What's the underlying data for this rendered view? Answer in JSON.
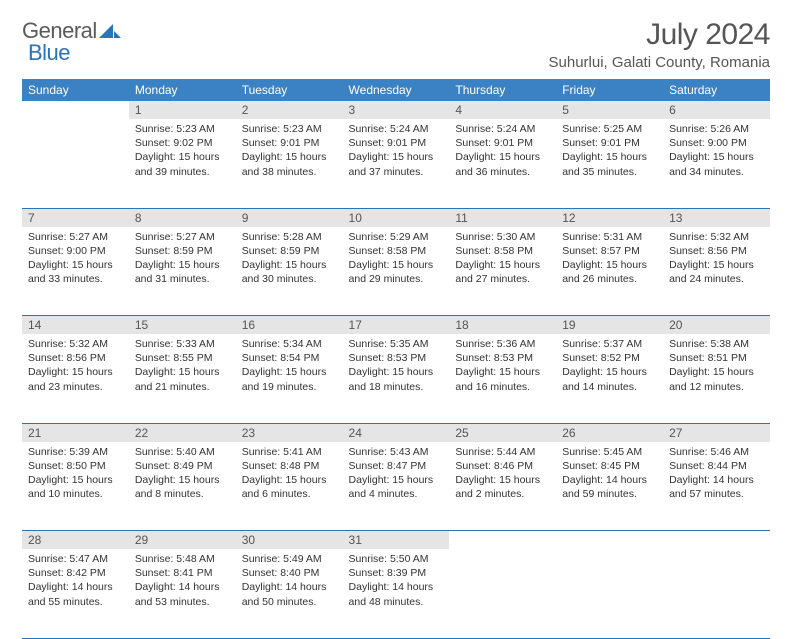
{
  "logo": {
    "word1": "General",
    "word2": "Blue"
  },
  "title": "July 2024",
  "location": "Suhurlui, Galati County, Romania",
  "colors": {
    "header_bg": "#3b82c4",
    "header_text": "#ffffff",
    "daynum_bg": "#e5e5e5",
    "border": "#2c74b8",
    "logo_gray": "#5a5a5a",
    "logo_blue": "#2c74b8"
  },
  "weekdays": [
    "Sunday",
    "Monday",
    "Tuesday",
    "Wednesday",
    "Thursday",
    "Friday",
    "Saturday"
  ],
  "weeks": [
    [
      null,
      {
        "n": "1",
        "sr": "Sunrise: 5:23 AM",
        "ss": "Sunset: 9:02 PM",
        "dl": "Daylight: 15 hours and 39 minutes."
      },
      {
        "n": "2",
        "sr": "Sunrise: 5:23 AM",
        "ss": "Sunset: 9:01 PM",
        "dl": "Daylight: 15 hours and 38 minutes."
      },
      {
        "n": "3",
        "sr": "Sunrise: 5:24 AM",
        "ss": "Sunset: 9:01 PM",
        "dl": "Daylight: 15 hours and 37 minutes."
      },
      {
        "n": "4",
        "sr": "Sunrise: 5:24 AM",
        "ss": "Sunset: 9:01 PM",
        "dl": "Daylight: 15 hours and 36 minutes."
      },
      {
        "n": "5",
        "sr": "Sunrise: 5:25 AM",
        "ss": "Sunset: 9:01 PM",
        "dl": "Daylight: 15 hours and 35 minutes."
      },
      {
        "n": "6",
        "sr": "Sunrise: 5:26 AM",
        "ss": "Sunset: 9:00 PM",
        "dl": "Daylight: 15 hours and 34 minutes."
      }
    ],
    [
      {
        "n": "7",
        "sr": "Sunrise: 5:27 AM",
        "ss": "Sunset: 9:00 PM",
        "dl": "Daylight: 15 hours and 33 minutes."
      },
      {
        "n": "8",
        "sr": "Sunrise: 5:27 AM",
        "ss": "Sunset: 8:59 PM",
        "dl": "Daylight: 15 hours and 31 minutes."
      },
      {
        "n": "9",
        "sr": "Sunrise: 5:28 AM",
        "ss": "Sunset: 8:59 PM",
        "dl": "Daylight: 15 hours and 30 minutes."
      },
      {
        "n": "10",
        "sr": "Sunrise: 5:29 AM",
        "ss": "Sunset: 8:58 PM",
        "dl": "Daylight: 15 hours and 29 minutes."
      },
      {
        "n": "11",
        "sr": "Sunrise: 5:30 AM",
        "ss": "Sunset: 8:58 PM",
        "dl": "Daylight: 15 hours and 27 minutes."
      },
      {
        "n": "12",
        "sr": "Sunrise: 5:31 AM",
        "ss": "Sunset: 8:57 PM",
        "dl": "Daylight: 15 hours and 26 minutes."
      },
      {
        "n": "13",
        "sr": "Sunrise: 5:32 AM",
        "ss": "Sunset: 8:56 PM",
        "dl": "Daylight: 15 hours and 24 minutes."
      }
    ],
    [
      {
        "n": "14",
        "sr": "Sunrise: 5:32 AM",
        "ss": "Sunset: 8:56 PM",
        "dl": "Daylight: 15 hours and 23 minutes."
      },
      {
        "n": "15",
        "sr": "Sunrise: 5:33 AM",
        "ss": "Sunset: 8:55 PM",
        "dl": "Daylight: 15 hours and 21 minutes."
      },
      {
        "n": "16",
        "sr": "Sunrise: 5:34 AM",
        "ss": "Sunset: 8:54 PM",
        "dl": "Daylight: 15 hours and 19 minutes."
      },
      {
        "n": "17",
        "sr": "Sunrise: 5:35 AM",
        "ss": "Sunset: 8:53 PM",
        "dl": "Daylight: 15 hours and 18 minutes."
      },
      {
        "n": "18",
        "sr": "Sunrise: 5:36 AM",
        "ss": "Sunset: 8:53 PM",
        "dl": "Daylight: 15 hours and 16 minutes."
      },
      {
        "n": "19",
        "sr": "Sunrise: 5:37 AM",
        "ss": "Sunset: 8:52 PM",
        "dl": "Daylight: 15 hours and 14 minutes."
      },
      {
        "n": "20",
        "sr": "Sunrise: 5:38 AM",
        "ss": "Sunset: 8:51 PM",
        "dl": "Daylight: 15 hours and 12 minutes."
      }
    ],
    [
      {
        "n": "21",
        "sr": "Sunrise: 5:39 AM",
        "ss": "Sunset: 8:50 PM",
        "dl": "Daylight: 15 hours and 10 minutes."
      },
      {
        "n": "22",
        "sr": "Sunrise: 5:40 AM",
        "ss": "Sunset: 8:49 PM",
        "dl": "Daylight: 15 hours and 8 minutes."
      },
      {
        "n": "23",
        "sr": "Sunrise: 5:41 AM",
        "ss": "Sunset: 8:48 PM",
        "dl": "Daylight: 15 hours and 6 minutes."
      },
      {
        "n": "24",
        "sr": "Sunrise: 5:43 AM",
        "ss": "Sunset: 8:47 PM",
        "dl": "Daylight: 15 hours and 4 minutes."
      },
      {
        "n": "25",
        "sr": "Sunrise: 5:44 AM",
        "ss": "Sunset: 8:46 PM",
        "dl": "Daylight: 15 hours and 2 minutes."
      },
      {
        "n": "26",
        "sr": "Sunrise: 5:45 AM",
        "ss": "Sunset: 8:45 PM",
        "dl": "Daylight: 14 hours and 59 minutes."
      },
      {
        "n": "27",
        "sr": "Sunrise: 5:46 AM",
        "ss": "Sunset: 8:44 PM",
        "dl": "Daylight: 14 hours and 57 minutes."
      }
    ],
    [
      {
        "n": "28",
        "sr": "Sunrise: 5:47 AM",
        "ss": "Sunset: 8:42 PM",
        "dl": "Daylight: 14 hours and 55 minutes."
      },
      {
        "n": "29",
        "sr": "Sunrise: 5:48 AM",
        "ss": "Sunset: 8:41 PM",
        "dl": "Daylight: 14 hours and 53 minutes."
      },
      {
        "n": "30",
        "sr": "Sunrise: 5:49 AM",
        "ss": "Sunset: 8:40 PM",
        "dl": "Daylight: 14 hours and 50 minutes."
      },
      {
        "n": "31",
        "sr": "Sunrise: 5:50 AM",
        "ss": "Sunset: 8:39 PM",
        "dl": "Daylight: 14 hours and 48 minutes."
      },
      null,
      null,
      null
    ]
  ]
}
